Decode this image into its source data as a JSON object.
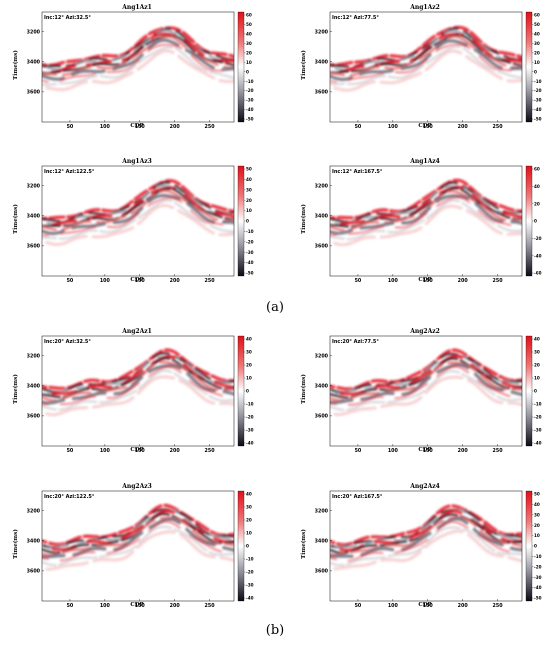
{
  "caption_a": "(a)",
  "caption_b": "(b)",
  "colors": {
    "red": "#e8121e",
    "dark": "#151525"
  },
  "panels": [
    {
      "title": "Ang1Az1",
      "annotation": "Inc:12° Azi:32.5°",
      "ylabel": "Time(ms)",
      "xlabel": "CDP",
      "xticks": [
        50,
        100,
        150,
        200,
        250
      ],
      "yticks": [
        3200,
        3400,
        3600
      ],
      "cbar_ticks": [
        60,
        50,
        40,
        30,
        20,
        10,
        0,
        -10,
        -20,
        -30,
        -40,
        -50
      ]
    },
    {
      "title": "Ang1Az2",
      "annotation": "Inc:12° Azi:77.5°",
      "ylabel": "Time(ms)",
      "xlabel": "CDP",
      "xticks": [
        50,
        100,
        150,
        200,
        250
      ],
      "yticks": [
        3200,
        3400,
        3600
      ],
      "cbar_ticks": [
        60,
        50,
        40,
        30,
        20,
        10,
        0,
        -10,
        -20,
        -30,
        -40,
        -50
      ]
    },
    {
      "title": "Ang1Az3",
      "annotation": "Inc:12° Azi:122.5°",
      "ylabel": "Time(ms)",
      "xlabel": "CDP",
      "xticks": [
        50,
        100,
        150,
        200,
        250
      ],
      "yticks": [
        3200,
        3400,
        3600
      ],
      "cbar_ticks": [
        50,
        40,
        30,
        20,
        10,
        0,
        -10,
        -20,
        -30,
        -40,
        -50
      ]
    },
    {
      "title": "Ang1Az4",
      "annotation": "Inc:12° Azi:167.5°",
      "ylabel": "Time(ms)",
      "xlabel": "CDP",
      "xticks": [
        50,
        100,
        150,
        200,
        250
      ],
      "yticks": [
        3200,
        3400,
        3600
      ],
      "cbar_ticks": [
        60,
        40,
        20,
        0,
        -20,
        -40,
        -60
      ]
    },
    {
      "title": "Ang2Az1",
      "annotation": "Inc:20° Azi:32.5°",
      "ylabel": "Time(ms)",
      "xlabel": "CDP",
      "xticks": [
        50,
        100,
        150,
        200,
        250
      ],
      "yticks": [
        3200,
        3400,
        3600
      ],
      "cbar_ticks": [
        40,
        30,
        20,
        10,
        0,
        -10,
        -20,
        -30,
        -40
      ]
    },
    {
      "title": "Ang2Az2",
      "annotation": "Inc:20° Azi:77.5°",
      "ylabel": "Time(ms)",
      "xlabel": "CDP",
      "xticks": [
        50,
        100,
        150,
        200,
        250
      ],
      "yticks": [
        3200,
        3400,
        3600
      ],
      "cbar_ticks": [
        40,
        30,
        20,
        10,
        0,
        -10,
        -20,
        -30,
        -40
      ]
    },
    {
      "title": "Ang2Az3",
      "annotation": "Inc:20° Azi:122.5°",
      "ylabel": "Time(ms)",
      "xlabel": "CDP",
      "xticks": [
        50,
        100,
        150,
        200,
        250
      ],
      "yticks": [
        3200,
        3400,
        3600
      ],
      "cbar_ticks": [
        40,
        30,
        20,
        10,
        0,
        -10,
        -20,
        -30,
        -40
      ]
    },
    {
      "title": "Ang2Az4",
      "annotation": "Inc:20° Azi:167.5°",
      "ylabel": "Time(ms)",
      "xlabel": "CDP",
      "xticks": [
        50,
        100,
        150,
        200,
        250
      ],
      "yticks": [
        3200,
        3400,
        3600
      ],
      "cbar_ticks": [
        50,
        40,
        30,
        20,
        10,
        0,
        -10,
        -20,
        -30,
        -40,
        -50
      ]
    }
  ]
}
